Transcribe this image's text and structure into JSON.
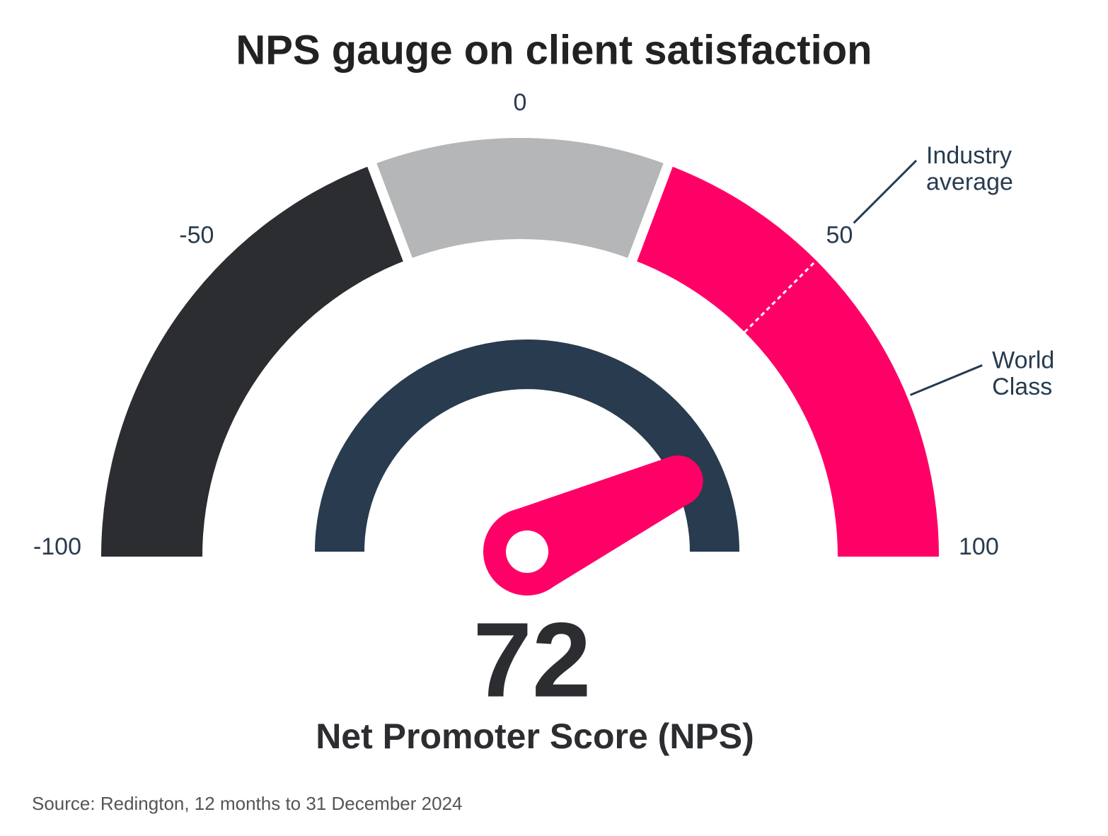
{
  "chart_data": {
    "type": "gauge",
    "title": "NPS gauge on client satisfaction",
    "value": 72,
    "value_caption": "Net Promoter Score (NPS)",
    "source": "Source: Redington, 12 months to 31 December 2024",
    "range": [
      -100,
      100
    ],
    "ticks": [
      -100,
      -50,
      0,
      50,
      100
    ],
    "bands": [
      {
        "from": -100,
        "to": -23,
        "color": "#2b2d31"
      },
      {
        "from": -23,
        "to": 23,
        "color": "#b4b6b7"
      },
      {
        "from": 23,
        "to": 100,
        "color": "#ff0066"
      }
    ],
    "markers": [
      {
        "name": "Industry average",
        "value": 50,
        "dashed": true
      },
      {
        "name": "World Class",
        "value": 75,
        "dashed": false
      }
    ],
    "needle_color": "#ff0066",
    "dial_color": "#283b4f"
  }
}
